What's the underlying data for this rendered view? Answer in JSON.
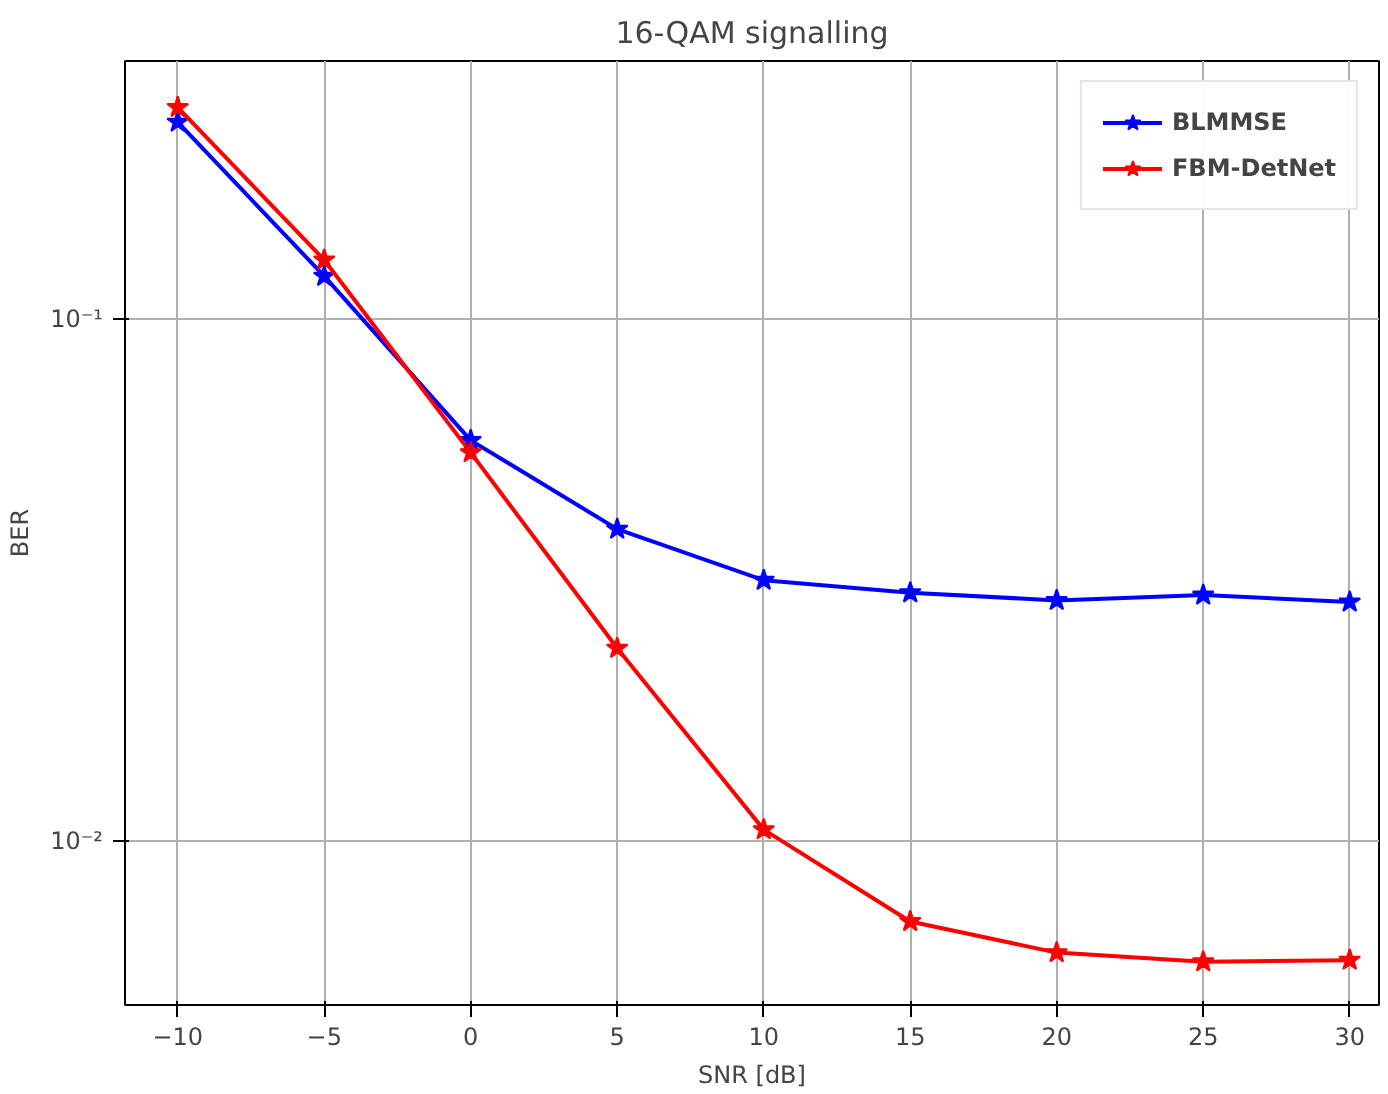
{
  "chart_data": {
    "type": "line",
    "title": "16-QAM signalling",
    "xlabel": "SNR [dB]",
    "ylabel": "BER",
    "x": [
      -10,
      -5,
      0,
      5,
      10,
      15,
      20,
      25,
      30
    ],
    "series": [
      {
        "name": "BLMMSE",
        "color": "#0000ff",
        "values": [
          0.239,
          0.121,
          0.0586,
          0.0396,
          0.0316,
          0.0299,
          0.0289,
          0.0296,
          0.0287
        ]
      },
      {
        "name": "FBM-DetNet",
        "color": "#ff0000",
        "values": [
          0.255,
          0.13,
          0.0555,
          0.0234,
          0.0105,
          0.007,
          0.0061,
          0.00586,
          0.0059
        ]
      }
    ],
    "xlim": [
      -11.8,
      31
    ],
    "ylim": [
      0.00484,
      0.313
    ],
    "log": "y",
    "xticks": [
      {
        "value": -10,
        "label": "−10"
      },
      {
        "value": -5,
        "label": "−5"
      },
      0,
      5,
      10,
      15,
      20,
      25,
      30
    ],
    "yticks": [
      {
        "value": 0.1,
        "label": "10⁻¹"
      },
      {
        "value": 0.01,
        "label": "10⁻²"
      }
    ],
    "grid": true,
    "legend": "top right",
    "marker": "star",
    "line_style": "solid"
  }
}
